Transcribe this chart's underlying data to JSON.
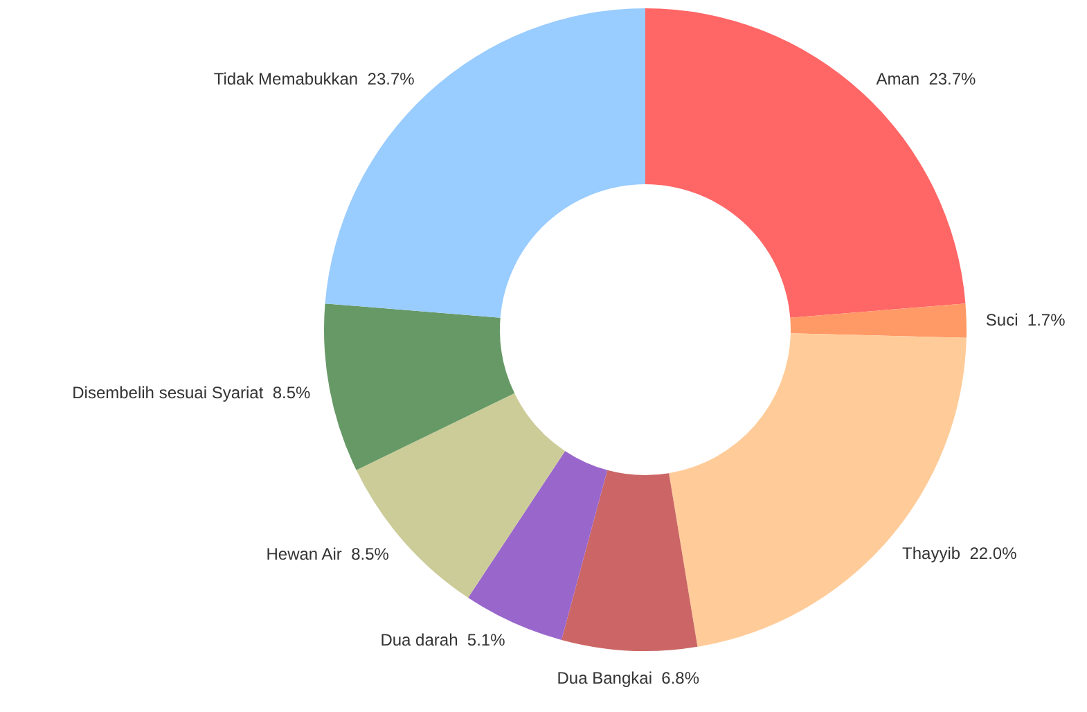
{
  "chart_data": {
    "type": "donut",
    "categories": [
      "Aman",
      "Suci",
      "Thayyib",
      "Dua Bangkai",
      "Dua darah",
      "Hewan Air",
      "Disembelih sesuai Syariat",
      "Tidak Memabukkan"
    ],
    "values": [
      23.7,
      1.7,
      22.0,
      6.8,
      5.1,
      8.5,
      8.5,
      23.7
    ],
    "value_labels": [
      "23.7%",
      "1.7%",
      "22.0%",
      "6.8%",
      "5.1%",
      "8.5%",
      "8.5%",
      "23.7%"
    ],
    "colors": [
      "#ff6666",
      "#ff9966",
      "#ffcc99",
      "#cc6666",
      "#9966cc",
      "#cccc99",
      "#669966",
      "#99ccff"
    ]
  }
}
